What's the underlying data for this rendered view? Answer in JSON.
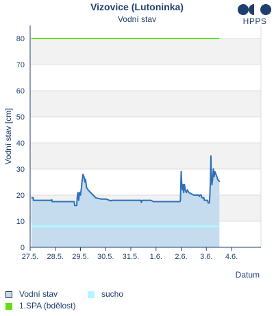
{
  "header": {
    "title": "Vizovice (Lutoninka)",
    "subtitle": "Vodní stav",
    "logo_text": "HPPS"
  },
  "colors": {
    "line": "#2e6fb8",
    "fill": "#c5dcef",
    "dry": "#b3f5ff",
    "spa": "#66dd11",
    "band": "#f2f2f2",
    "grid": "#dddddd",
    "axis": "#1f3f6e",
    "logo": "#1f3f6e"
  },
  "legend": {
    "water": "Vodní stav",
    "dry": "sucho",
    "spa": "1.SPA (bdělost)"
  },
  "chart_data": {
    "type": "area",
    "title": "Vizovice (Lutoninka)",
    "subtitle": "Vodní stav",
    "xlabel": "Datum",
    "ylabel": "Vodní stav [cm]",
    "ylim": [
      0,
      85
    ],
    "yticks": [
      0,
      10,
      20,
      30,
      40,
      50,
      60,
      70,
      80
    ],
    "xlim": [
      0,
      9.17
    ],
    "xticks": [
      {
        "x": 0,
        "label": "27.5."
      },
      {
        "x": 1,
        "label": "28.5."
      },
      {
        "x": 2,
        "label": "29.5."
      },
      {
        "x": 3,
        "label": "30.5."
      },
      {
        "x": 4,
        "label": "31.5."
      },
      {
        "x": 5,
        "label": "1.6."
      },
      {
        "x": 6,
        "label": "2.6."
      },
      {
        "x": 7,
        "label": "3.6."
      },
      {
        "x": 8,
        "label": "4.6."
      }
    ],
    "legend_position": "bottom-left",
    "thresholds": [
      {
        "name": "1.SPA (bdělost)",
        "value": 80
      },
      {
        "name": "sucho",
        "value": 8
      }
    ],
    "series": [
      {
        "name": "Vodní stav",
        "points": [
          [
            0.05,
            19
          ],
          [
            0.12,
            19
          ],
          [
            0.13,
            18
          ],
          [
            0.85,
            18
          ],
          [
            0.86,
            18.2
          ],
          [
            0.88,
            17.5
          ],
          [
            1.75,
            17.5
          ],
          [
            1.77,
            16
          ],
          [
            1.85,
            16
          ],
          [
            1.87,
            19
          ],
          [
            1.9,
            21
          ],
          [
            1.93,
            18
          ],
          [
            1.96,
            21
          ],
          [
            2.0,
            20
          ],
          [
            2.04,
            23
          ],
          [
            2.06,
            25
          ],
          [
            2.1,
            28
          ],
          [
            2.14,
            27
          ],
          [
            2.18,
            25
          ],
          [
            2.2,
            26
          ],
          [
            2.24,
            23
          ],
          [
            2.3,
            22
          ],
          [
            2.35,
            21.5
          ],
          [
            2.4,
            21
          ],
          [
            2.5,
            20
          ],
          [
            2.6,
            19
          ],
          [
            2.8,
            18.5
          ],
          [
            3.0,
            18.5
          ],
          [
            3.15,
            18
          ],
          [
            3.16,
            18
          ],
          [
            3.2,
            17.8
          ],
          [
            3.25,
            18
          ],
          [
            3.4,
            18
          ],
          [
            3.9,
            18
          ],
          [
            4.4,
            18
          ],
          [
            4.42,
            17.2
          ],
          [
            4.45,
            18
          ],
          [
            4.8,
            18
          ],
          [
            4.9,
            17.5
          ],
          [
            5.5,
            17.5
          ],
          [
            5.95,
            17.5
          ],
          [
            5.97,
            18
          ],
          [
            6.0,
            29
          ],
          [
            6.02,
            25
          ],
          [
            6.05,
            22
          ],
          [
            6.08,
            24
          ],
          [
            6.1,
            21
          ],
          [
            6.13,
            24
          ],
          [
            6.16,
            22
          ],
          [
            6.2,
            21
          ],
          [
            6.25,
            22
          ],
          [
            6.3,
            21
          ],
          [
            6.4,
            20.5
          ],
          [
            6.5,
            20
          ],
          [
            6.7,
            20
          ],
          [
            6.72,
            19.5
          ],
          [
            6.75,
            20
          ],
          [
            6.8,
            20
          ],
          [
            6.82,
            19
          ],
          [
            6.9,
            19
          ],
          [
            6.92,
            18
          ],
          [
            7.05,
            18
          ],
          [
            7.07,
            17
          ],
          [
            7.12,
            17
          ],
          [
            7.14,
            20
          ],
          [
            7.16,
            25
          ],
          [
            7.18,
            35
          ],
          [
            7.2,
            27
          ],
          [
            7.22,
            24
          ],
          [
            7.25,
            26
          ],
          [
            7.28,
            30
          ],
          [
            7.31,
            27
          ],
          [
            7.34,
            29
          ],
          [
            7.38,
            28
          ],
          [
            7.42,
            27
          ],
          [
            7.45,
            26
          ],
          [
            7.5,
            25.5
          ],
          [
            7.52,
            25
          ]
        ]
      }
    ]
  }
}
